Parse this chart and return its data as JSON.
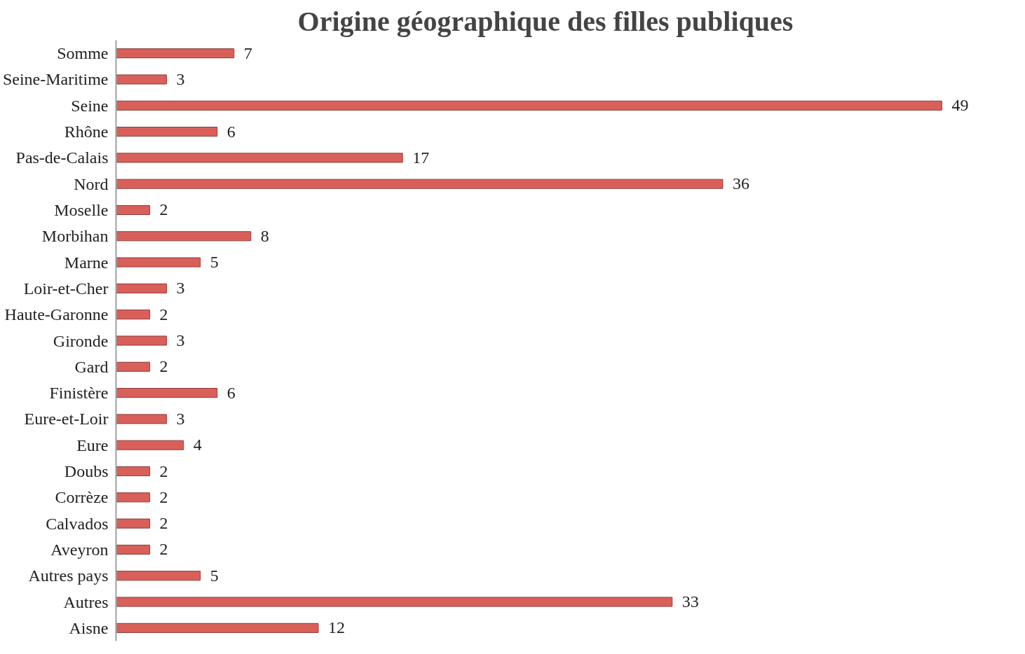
{
  "chart_data": {
    "type": "bar",
    "orientation": "horizontal",
    "title": "Origine géographique des filles publiques",
    "categories": [
      "Somme",
      "Seine-Maritime",
      "Seine",
      "Rhône",
      "Pas-de-Calais",
      "Nord",
      "Moselle",
      "Morbihan",
      "Marne",
      "Loir-et-Cher",
      "Haute-Garonne",
      "Gironde",
      "Gard",
      "Finistère",
      "Eure-et-Loir",
      "Eure",
      "Doubs",
      "Corrèze",
      "Calvados",
      "Aveyron",
      "Autres pays",
      "Autres",
      "Aisne"
    ],
    "values": [
      7,
      3,
      49,
      6,
      17,
      36,
      2,
      8,
      5,
      3,
      2,
      3,
      2,
      6,
      3,
      4,
      2,
      2,
      2,
      2,
      5,
      33,
      12
    ],
    "color": "#d9605a",
    "data_labels": true
  }
}
